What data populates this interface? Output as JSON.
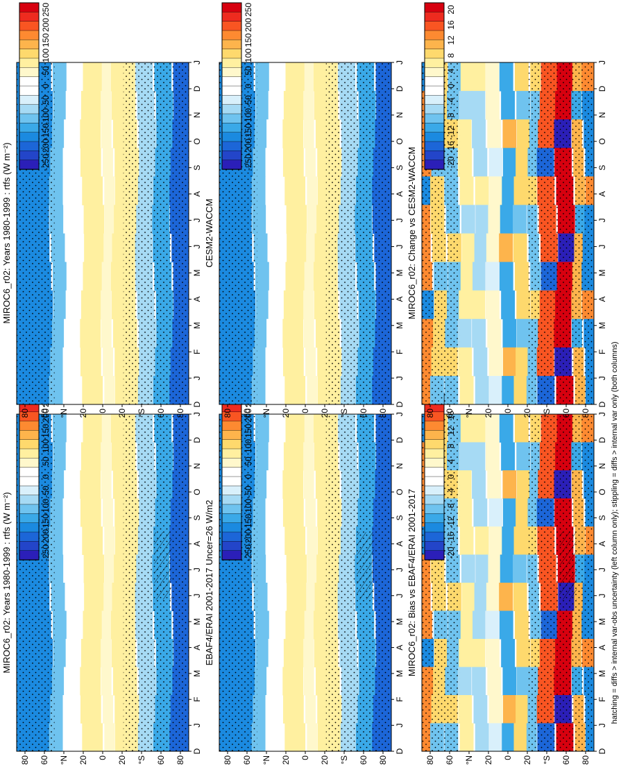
{
  "footnote": "hatching = diffs > internal var-obs uncertainty (left column only); stippling = diffs > internal var only (both columns)",
  "colorbars": {
    "abs": {
      "ticks": [
        "250",
        "200",
        "150",
        "100",
        "50",
        "0",
        "-50",
        "-100",
        "-150",
        "-200",
        "-250"
      ],
      "colors": [
        "#d7000f",
        "#ee2b1f",
        "#f95522",
        "#fd8a31",
        "#fdb44c",
        "#fed96d",
        "#fff0a0",
        "#fff8cc",
        "#ffffff",
        "#ffffff",
        "#d9f0fb",
        "#a6daf4",
        "#6fc3ef",
        "#3aa9e8",
        "#1b8ae0",
        "#1c66d8",
        "#2345c9",
        "#2b1fb8"
      ]
    },
    "diff": {
      "ticks": [
        "20",
        "16",
        "12",
        "8",
        "4",
        "0",
        "-4",
        "-8",
        "-12",
        "-16",
        "-20"
      ],
      "colors": [
        "#d7000f",
        "#ee2b1f",
        "#f95522",
        "#fd8a31",
        "#fdb44c",
        "#fed96d",
        "#fff0a0",
        "#fff8cc",
        "#ffffff",
        "#ffffff",
        "#d9f0fb",
        "#a6daf4",
        "#6fc3ef",
        "#3aa9e8",
        "#1b8ae0",
        "#1c66d8",
        "#2345c9",
        "#2b1fb8"
      ]
    }
  },
  "panel_axes": {
    "lat_ticks": [
      "80",
      "60",
      "°N",
      "20",
      "0",
      "20",
      "°S",
      "60",
      "80"
    ],
    "month_ticks": [
      "D",
      "J",
      "F",
      "M",
      "A",
      "M",
      "J",
      "J",
      "A",
      "S",
      "O",
      "N",
      "D",
      "J"
    ]
  },
  "chart_data": [
    {
      "type": "heatmap",
      "title": "MIROC6_r02: Years 1980-1999 : rtfs (W m⁻²)",
      "x": [
        "D",
        "J",
        "F",
        "M",
        "A",
        "M",
        "J",
        "J",
        "A",
        "S",
        "O",
        "N",
        "D",
        "J"
      ],
      "y": [
        80,
        60,
        40,
        20,
        0,
        -20,
        -40,
        -60,
        -80
      ],
      "zlim": [
        -250,
        250
      ]
    },
    {
      "type": "heatmap",
      "title": "MIROC6_r02: Years 1980-1999 : rtfs (W m⁻²)",
      "x": [
        "D",
        "J",
        "F",
        "M",
        "A",
        "M",
        "J",
        "J",
        "A",
        "S",
        "O",
        "N",
        "D",
        "J"
      ],
      "y": [
        80,
        60,
        40,
        20,
        0,
        -20,
        -40,
        -60,
        -80
      ],
      "zlim": [
        -250,
        250
      ]
    },
    {
      "type": "heatmap",
      "title": "EBAF4/ERAI 2001-2017 Uncer=26 W/m2",
      "x": [
        "D",
        "J",
        "F",
        "M",
        "A",
        "M",
        "J",
        "J",
        "A",
        "S",
        "O",
        "N",
        "D",
        "J"
      ],
      "y": [
        80,
        60,
        40,
        20,
        0,
        -20,
        -40,
        -60,
        -80
      ],
      "zlim": [
        -250,
        250
      ]
    },
    {
      "type": "heatmap",
      "title": "CESM2-WACCM",
      "x": [
        "D",
        "J",
        "F",
        "M",
        "A",
        "M",
        "J",
        "J",
        "A",
        "S",
        "O",
        "N",
        "D",
        "J"
      ],
      "y": [
        80,
        60,
        40,
        20,
        0,
        -20,
        -40,
        -60,
        -80
      ],
      "zlim": [
        -250,
        250
      ]
    },
    {
      "type": "heatmap",
      "title": "MIROC6_r02: Bias vs EBAF4/ERAI 2001-2017",
      "x": [
        "D",
        "J",
        "F",
        "M",
        "A",
        "M",
        "J",
        "J",
        "A",
        "S",
        "O",
        "N",
        "D",
        "J"
      ],
      "y": [
        80,
        60,
        40,
        20,
        0,
        -20,
        -40,
        -60,
        -80
      ],
      "zlim": [
        -20,
        20
      ]
    },
    {
      "type": "heatmap",
      "title": "MIROC6_r02: Change vs CESM2-WACCM",
      "x": [
        "D",
        "J",
        "F",
        "M",
        "A",
        "M",
        "J",
        "J",
        "A",
        "S",
        "O",
        "N",
        "D",
        "J"
      ],
      "y": [
        80,
        60,
        40,
        20,
        0,
        -20,
        -40,
        -60,
        -80
      ],
      "zlim": [
        -20,
        20
      ]
    }
  ]
}
